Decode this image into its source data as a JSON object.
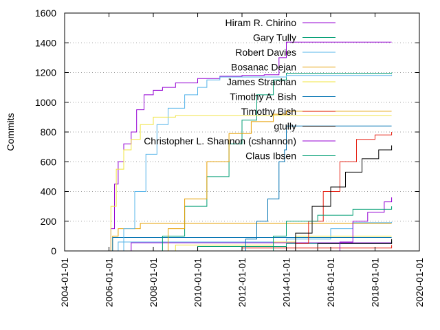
{
  "chart_data": {
    "type": "line",
    "title": "",
    "xlabel": "",
    "ylabel": "Commits",
    "x_tick_labels": [
      "2004-01-01",
      "2006-01-01",
      "2008-01-01",
      "2010-01-01",
      "2012-01-01",
      "2014-01-01",
      "2016-01-01",
      "2018-01-01",
      "2020-01-01"
    ],
    "xlim": [
      "2004-01-01",
      "2020-01-01"
    ],
    "y_ticks": [
      0,
      200,
      400,
      600,
      800,
      1000,
      1200,
      1400,
      1600
    ],
    "ylim": [
      0,
      1600
    ],
    "grid": "horizontal dotted",
    "legend_position": "top-right",
    "series": [
      {
        "name": "Hiram R. Chirino",
        "color": "#9400d3",
        "points": [
          [
            "2006-01-01",
            0
          ],
          [
            "2006-02-01",
            150
          ],
          [
            "2006-04-01",
            450
          ],
          [
            "2006-06-01",
            600
          ],
          [
            "2006-09-01",
            720
          ],
          [
            "2007-01-01",
            800
          ],
          [
            "2007-04-01",
            950
          ],
          [
            "2007-08-01",
            1050
          ],
          [
            "2008-01-01",
            1080
          ],
          [
            "2008-06-01",
            1100
          ],
          [
            "2009-01-01",
            1130
          ],
          [
            "2010-01-01",
            1160
          ],
          [
            "2011-01-01",
            1175
          ],
          [
            "2012-01-01",
            1180
          ],
          [
            "2013-01-01",
            1185
          ],
          [
            "2013-09-01",
            1300
          ],
          [
            "2014-01-01",
            1405
          ],
          [
            "2018-10-01",
            1405
          ]
        ]
      },
      {
        "name": "Gary Tully",
        "color": "#009e73",
        "points": [
          [
            "2007-09-01",
            0
          ],
          [
            "2008-06-01",
            100
          ],
          [
            "2009-06-01",
            300
          ],
          [
            "2010-06-01",
            500
          ],
          [
            "2011-06-01",
            720
          ],
          [
            "2012-01-01",
            880
          ],
          [
            "2012-09-01",
            1050
          ],
          [
            "2013-06-01",
            1150
          ],
          [
            "2014-01-01",
            1195
          ],
          [
            "2018-10-01",
            1200
          ]
        ]
      },
      {
        "name": "Robert Davies",
        "color": "#56b4e9",
        "points": [
          [
            "2006-03-01",
            0
          ],
          [
            "2006-09-01",
            150
          ],
          [
            "2007-03-01",
            400
          ],
          [
            "2007-09-01",
            650
          ],
          [
            "2008-03-01",
            850
          ],
          [
            "2008-09-01",
            960
          ],
          [
            "2009-06-01",
            1050
          ],
          [
            "2010-01-01",
            1100
          ],
          [
            "2010-06-01",
            1150
          ],
          [
            "2011-01-01",
            1170
          ],
          [
            "2014-01-01",
            1180
          ],
          [
            "2018-10-01",
            1185
          ]
        ]
      },
      {
        "name": "Bosanac Dejan",
        "color": "#e69f00",
        "points": [
          [
            "2008-01-01",
            0
          ],
          [
            "2008-09-01",
            150
          ],
          [
            "2009-06-01",
            350
          ],
          [
            "2010-06-01",
            600
          ],
          [
            "2011-06-01",
            790
          ],
          [
            "2012-06-01",
            870
          ],
          [
            "2013-06-01",
            920
          ],
          [
            "2014-01-01",
            940
          ],
          [
            "2018-10-01",
            940
          ]
        ]
      },
      {
        "name": "James Strachan",
        "color": "#f0e442",
        "points": [
          [
            "2005-12-01",
            0
          ],
          [
            "2006-02-01",
            300
          ],
          [
            "2006-05-01",
            550
          ],
          [
            "2006-09-01",
            680
          ],
          [
            "2007-01-01",
            750
          ],
          [
            "2007-06-01",
            850
          ],
          [
            "2008-01-01",
            900
          ],
          [
            "2009-01-01",
            910
          ],
          [
            "2018-10-01",
            910
          ]
        ]
      },
      {
        "name": "Timothy A. Bish",
        "color": "#0072b2",
        "points": [
          [
            "2011-10-01",
            0
          ],
          [
            "2012-03-01",
            80
          ],
          [
            "2012-09-01",
            200
          ],
          [
            "2013-03-01",
            350
          ],
          [
            "2013-09-01",
            600
          ],
          [
            "2013-12-01",
            680
          ],
          [
            "2014-01-01",
            840
          ],
          [
            "2018-10-01",
            840
          ]
        ]
      },
      {
        "name": "Timothy Bish",
        "color": "#e51e10",
        "points": [
          [
            "2013-12-01",
            0
          ],
          [
            "2014-06-01",
            50
          ],
          [
            "2015-01-01",
            200
          ],
          [
            "2015-09-01",
            400
          ],
          [
            "2016-06-01",
            600
          ],
          [
            "2017-03-01",
            750
          ],
          [
            "2018-01-01",
            780
          ],
          [
            "2018-10-01",
            800
          ]
        ]
      },
      {
        "name": "gtully",
        "color": "#000000",
        "points": [
          [
            "2013-12-01",
            0
          ],
          [
            "2014-06-01",
            120
          ],
          [
            "2015-03-01",
            300
          ],
          [
            "2016-01-01",
            430
          ],
          [
            "2016-09-01",
            530
          ],
          [
            "2017-06-01",
            620
          ],
          [
            "2018-03-01",
            680
          ],
          [
            "2018-10-01",
            710
          ]
        ]
      },
      {
        "name": "Christopher L. Shannon (cshannon)",
        "color": "#9400d3",
        "points": [
          [
            "2015-06-01",
            0
          ],
          [
            "2016-06-01",
            60
          ],
          [
            "2017-01-01",
            200
          ],
          [
            "2017-09-01",
            260
          ],
          [
            "2018-06-01",
            330
          ],
          [
            "2018-10-01",
            360
          ]
        ]
      },
      {
        "name": "Claus Ibsen",
        "color": "#009e73",
        "points": [
          [
            "2013-01-01",
            0
          ],
          [
            "2013-06-01",
            100
          ],
          [
            "2014-01-01",
            200
          ],
          [
            "2015-06-01",
            240
          ],
          [
            "2017-01-01",
            280
          ],
          [
            "2018-10-01",
            300
          ]
        ]
      }
    ],
    "extra_lines_without_legend": [
      {
        "color": "#56b4e9",
        "points": [
          [
            "2006-01-01",
            0
          ],
          [
            "2006-06-01",
            60
          ],
          [
            "2014-01-01",
            80
          ],
          [
            "2016-01-01",
            150
          ],
          [
            "2017-01-01",
            190
          ],
          [
            "2018-10-01",
            195
          ]
        ]
      },
      {
        "color": "#e69f00",
        "points": [
          [
            "2005-12-01",
            0
          ],
          [
            "2006-03-01",
            100
          ],
          [
            "2006-06-01",
            150
          ],
          [
            "2007-06-01",
            185
          ],
          [
            "2018-10-01",
            185
          ]
        ]
      },
      {
        "color": "#0072b2",
        "points": [
          [
            "2006-01-01",
            0
          ],
          [
            "2006-03-01",
            90
          ],
          [
            "2018-10-01",
            90
          ]
        ]
      },
      {
        "color": "#f0e442",
        "points": [
          [
            "2008-01-01",
            0
          ],
          [
            "2009-01-01",
            40
          ],
          [
            "2013-06-01",
            60
          ],
          [
            "2014-06-01",
            100
          ],
          [
            "2018-10-01",
            100
          ]
        ]
      },
      {
        "color": "#9400d3",
        "points": [
          [
            "2006-06-01",
            0
          ],
          [
            "2007-01-01",
            55
          ],
          [
            "2018-10-01",
            60
          ]
        ]
      },
      {
        "color": "#009e73",
        "points": [
          [
            "2008-06-01",
            0
          ],
          [
            "2010-01-01",
            30
          ],
          [
            "2014-01-01",
            50
          ],
          [
            "2018-10-01",
            70
          ]
        ]
      },
      {
        "color": "#000000",
        "points": [
          [
            "2014-01-01",
            0
          ],
          [
            "2015-06-01",
            50
          ],
          [
            "2018-10-01",
            80
          ]
        ]
      },
      {
        "color": "#e51e10",
        "points": [
          [
            "2009-01-01",
            0
          ],
          [
            "2012-01-01",
            20
          ],
          [
            "2018-10-01",
            40
          ]
        ]
      }
    ]
  }
}
